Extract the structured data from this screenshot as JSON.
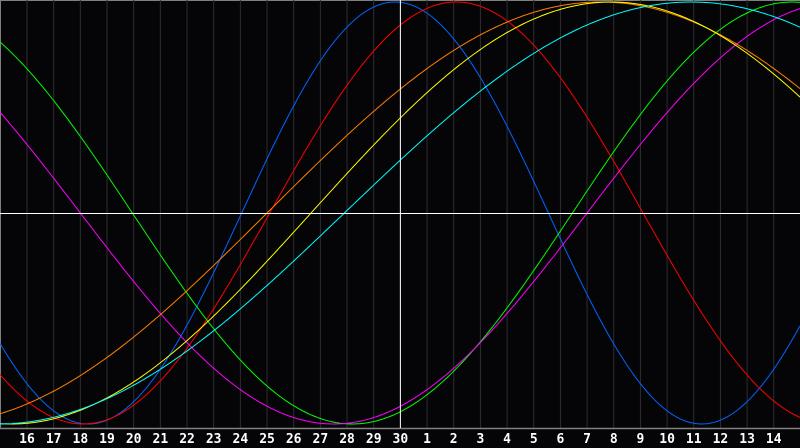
{
  "chart_data": {
    "type": "line",
    "title": "",
    "xlabel": "",
    "ylabel": "",
    "x_tick_labels": [
      "16",
      "17",
      "18",
      "19",
      "20",
      "21",
      "22",
      "23",
      "24",
      "25",
      "26",
      "27",
      "28",
      "29",
      "30",
      "1",
      "2",
      "3",
      "4",
      "5",
      "6",
      "7",
      "8",
      "9",
      "10",
      "11",
      "12",
      "13",
      "14"
    ],
    "ylim": [
      -1,
      1
    ],
    "grid": true,
    "center_marker_day": "30",
    "series": [
      {
        "color": "#0066ff",
        "period_days": 23,
        "peak_date": 29.8
      },
      {
        "color": "#ff0000",
        "period_days": 28,
        "peak_date": 2.1
      },
      {
        "color": "#00ff00",
        "period_days": 33,
        "trough_date": 28.2
      },
      {
        "color": "#ff00ff",
        "period_days": 38,
        "trough_date": 27.5
      },
      {
        "color": "#ff8000",
        "period_days": 50,
        "peak_date": 7.5
      },
      {
        "color": "#ffff00",
        "period_days": 45,
        "peak_date": 7.9
      },
      {
        "color": "#00ffff",
        "period_days": 52,
        "peak_date": 10.9
      }
    ]
  },
  "colors": {
    "background": "#050508",
    "grid": "#2e2e33",
    "axis": "#808080",
    "crosshair": "#ffffff"
  }
}
